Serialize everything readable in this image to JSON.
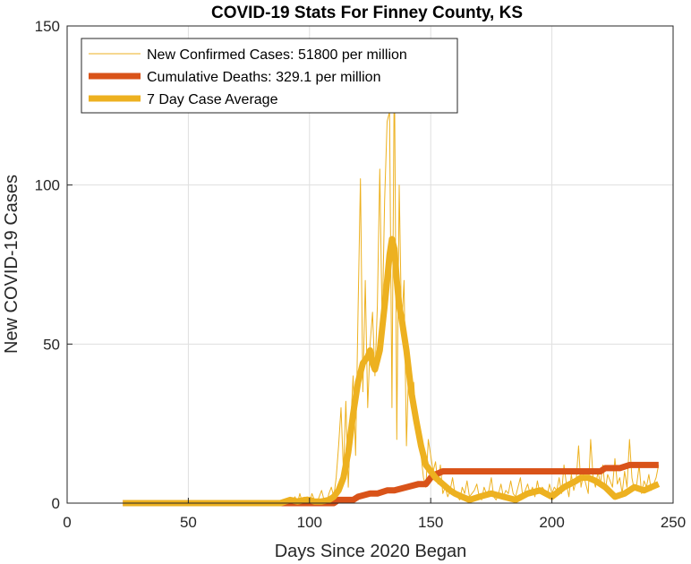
{
  "chart_data": {
    "type": "line",
    "title": "COVID-19 Stats For Finney County, KS",
    "xlabel": "Days Since 2020 Began",
    "ylabel": "New COVID-19 Cases",
    "xlim": [
      0,
      250
    ],
    "ylim": [
      0,
      150
    ],
    "xticks": [
      0,
      50,
      100,
      150,
      200,
      250
    ],
    "yticks": [
      0,
      50,
      100,
      150
    ],
    "grid": true,
    "legend_position": "top-left",
    "series": [
      {
        "name": "New Confirmed Cases: 51800 per million",
        "color": "#EDB120",
        "line_width": "thin",
        "x": [
          23,
          30,
          40,
          50,
          60,
          70,
          80,
          85,
          88,
          90,
          92,
          94,
          95,
          96,
          97,
          98,
          99,
          100,
          101,
          102,
          103,
          104,
          105,
          106,
          107,
          108,
          109,
          110,
          111,
          112,
          113,
          114,
          115,
          116,
          117,
          118,
          119,
          120,
          121,
          122,
          123,
          124,
          125,
          126,
          127,
          128,
          129,
          130,
          131,
          132,
          133,
          134,
          135,
          136,
          137,
          138,
          139,
          140,
          141,
          142,
          143,
          144,
          145,
          146,
          147,
          148,
          149,
          150,
          151,
          152,
          153,
          154,
          155,
          156,
          157,
          158,
          159,
          160,
          161,
          162,
          163,
          164,
          165,
          166,
          167,
          168,
          169,
          170,
          171,
          172,
          173,
          174,
          175,
          176,
          177,
          178,
          179,
          180,
          181,
          182,
          183,
          184,
          185,
          186,
          187,
          188,
          189,
          190,
          191,
          192,
          193,
          194,
          195,
          196,
          197,
          198,
          199,
          200,
          201,
          202,
          203,
          204,
          205,
          206,
          207,
          208,
          209,
          210,
          211,
          212,
          213,
          214,
          215,
          216,
          217,
          218,
          219,
          220,
          221,
          222,
          223,
          224,
          225,
          226,
          227,
          228,
          229,
          230,
          231,
          232,
          233,
          234,
          235,
          236,
          237,
          238,
          239,
          240,
          241,
          242,
          243,
          244
        ],
        "values": [
          0,
          0,
          0,
          0,
          0,
          0,
          0,
          0,
          0,
          1,
          0,
          2,
          0,
          3,
          0,
          1,
          2,
          0,
          3,
          1,
          0,
          2,
          4,
          1,
          0,
          3,
          5,
          2,
          8,
          18,
          30,
          10,
          32,
          5,
          25,
          40,
          15,
          60,
          102,
          35,
          70,
          30,
          50,
          60,
          40,
          62,
          105,
          55,
          95,
          120,
          123,
          30,
          140,
          20,
          100,
          55,
          70,
          18,
          45,
          30,
          38,
          25,
          20,
          15,
          8,
          5,
          20,
          15,
          10,
          13,
          6,
          12,
          3,
          5,
          2,
          4,
          8,
          3,
          2,
          1,
          5,
          3,
          7,
          2,
          3,
          4,
          6,
          2,
          1,
          5,
          3,
          4,
          8,
          2,
          1,
          3,
          6,
          2,
          4,
          3,
          7,
          3,
          2,
          5,
          8,
          2,
          4,
          6,
          3,
          5,
          2,
          7,
          3,
          5,
          4,
          2,
          6,
          3,
          5,
          4,
          8,
          3,
          12,
          6,
          2,
          9,
          4,
          7,
          18,
          5,
          9,
          6,
          3,
          20,
          8,
          5,
          10,
          6,
          12,
          4,
          9,
          7,
          5,
          14,
          6,
          8,
          3,
          10,
          5,
          20,
          8,
          4,
          6,
          12,
          3,
          7,
          5,
          9,
          4,
          6,
          8,
          12
        ]
      },
      {
        "name": "Cumulative Deaths: 329.1 per million",
        "color": "#D95319",
        "line_width": "thick",
        "x": [
          23,
          110,
          112,
          118,
          120,
          125,
          128,
          132,
          135,
          140,
          145,
          148,
          150,
          152,
          155,
          160,
          180,
          200,
          210,
          220,
          222,
          224,
          226,
          228,
          232,
          236,
          240,
          244
        ],
        "values": [
          0,
          0,
          1,
          1,
          2,
          3,
          3,
          4,
          4,
          5,
          6,
          6,
          8,
          9,
          10,
          10,
          10,
          10,
          10,
          10,
          11,
          11,
          11,
          11,
          12,
          12,
          12,
          12
        ]
      },
      {
        "name": "7 Day Case Average",
        "color": "#EDB120",
        "line_width": "thick",
        "x": [
          23,
          40,
          60,
          80,
          88,
          90,
          92,
          95,
          98,
          100,
          102,
          105,
          108,
          110,
          112,
          114,
          116,
          118,
          120,
          122,
          124,
          125,
          126,
          127,
          128,
          129,
          130,
          131,
          132,
          133,
          134,
          135,
          136,
          137,
          138,
          139,
          140,
          142,
          144,
          146,
          148,
          150,
          152,
          155,
          158,
          160,
          163,
          166,
          170,
          175,
          180,
          185,
          190,
          195,
          200,
          205,
          210,
          212,
          215,
          218,
          222,
          226,
          230,
          234,
          238,
          241,
          244
        ],
        "values": [
          0,
          0,
          0,
          0,
          0,
          0.5,
          1,
          0.5,
          1,
          1,
          0.5,
          0.5,
          1,
          2,
          4,
          8,
          16,
          28,
          38,
          44,
          46,
          48,
          44,
          42,
          45,
          48,
          55,
          62,
          70,
          78,
          83,
          80,
          70,
          62,
          58,
          53,
          48,
          35,
          26,
          18,
          12,
          10,
          8,
          6,
          4,
          3,
          2,
          1,
          2,
          3,
          2,
          1,
          3,
          4,
          2,
          5,
          7,
          8,
          8,
          7,
          5,
          2,
          3,
          5,
          4,
          5,
          6
        ]
      }
    ]
  }
}
